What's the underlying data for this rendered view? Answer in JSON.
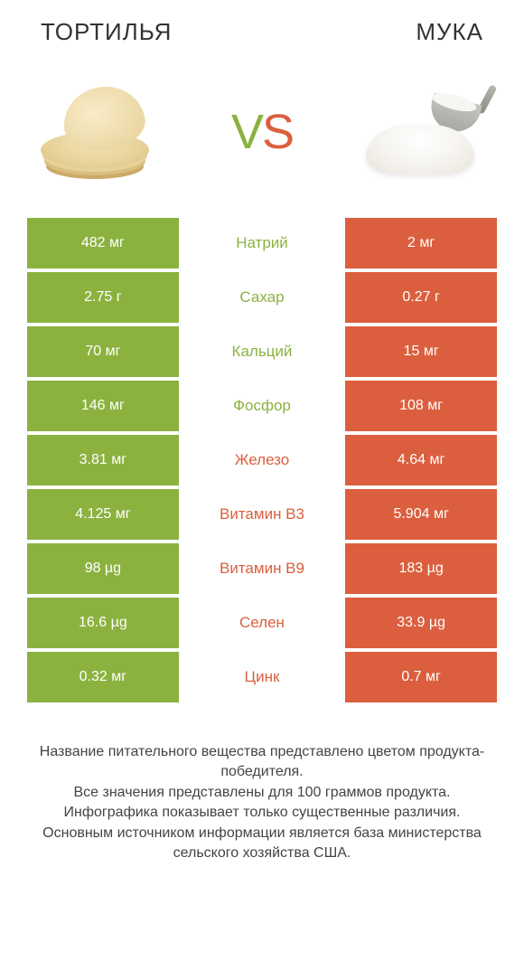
{
  "header": {
    "left_title": "ТОРТИЛЬЯ",
    "right_title": "МУКА"
  },
  "vs": {
    "label": "VS",
    "left_color": "#8bb23f",
    "right_color": "#db5f3e"
  },
  "colors": {
    "left_bg": "#8bb23f",
    "right_bg": "#db5f3e",
    "cell_text": "#ffffff",
    "mid_left_color": "#8bb23f",
    "mid_right_color": "#db5f3e"
  },
  "rows": [
    {
      "left": "482 мг",
      "name": "Натрий",
      "right": "2 мг",
      "winner": "left"
    },
    {
      "left": "2.75 г",
      "name": "Сахар",
      "right": "0.27 г",
      "winner": "left"
    },
    {
      "left": "70 мг",
      "name": "Кальций",
      "right": "15 мг",
      "winner": "left"
    },
    {
      "left": "146 мг",
      "name": "Фосфор",
      "right": "108 мг",
      "winner": "left"
    },
    {
      "left": "3.81 мг",
      "name": "Железо",
      "right": "4.64 мг",
      "winner": "right"
    },
    {
      "left": "4.125 мг",
      "name": "Витамин B3",
      "right": "5.904 мг",
      "winner": "right"
    },
    {
      "left": "98 µg",
      "name": "Витамин B9",
      "right": "183 µg",
      "winner": "right"
    },
    {
      "left": "16.6 µg",
      "name": "Селен",
      "right": "33.9 µg",
      "winner": "right"
    },
    {
      "left": "0.32 мг",
      "name": "Цинк",
      "right": "0.7 мг",
      "winner": "right"
    }
  ],
  "footer": {
    "line1": "Название питательного вещества представлено цветом продукта-победителя.",
    "line2": "Все значения представлены для 100 граммов продукта.",
    "line3": "Инфографика показывает только существенные различия.",
    "line4": "Основным источником информации является база министерства сельского хозяйства США."
  }
}
